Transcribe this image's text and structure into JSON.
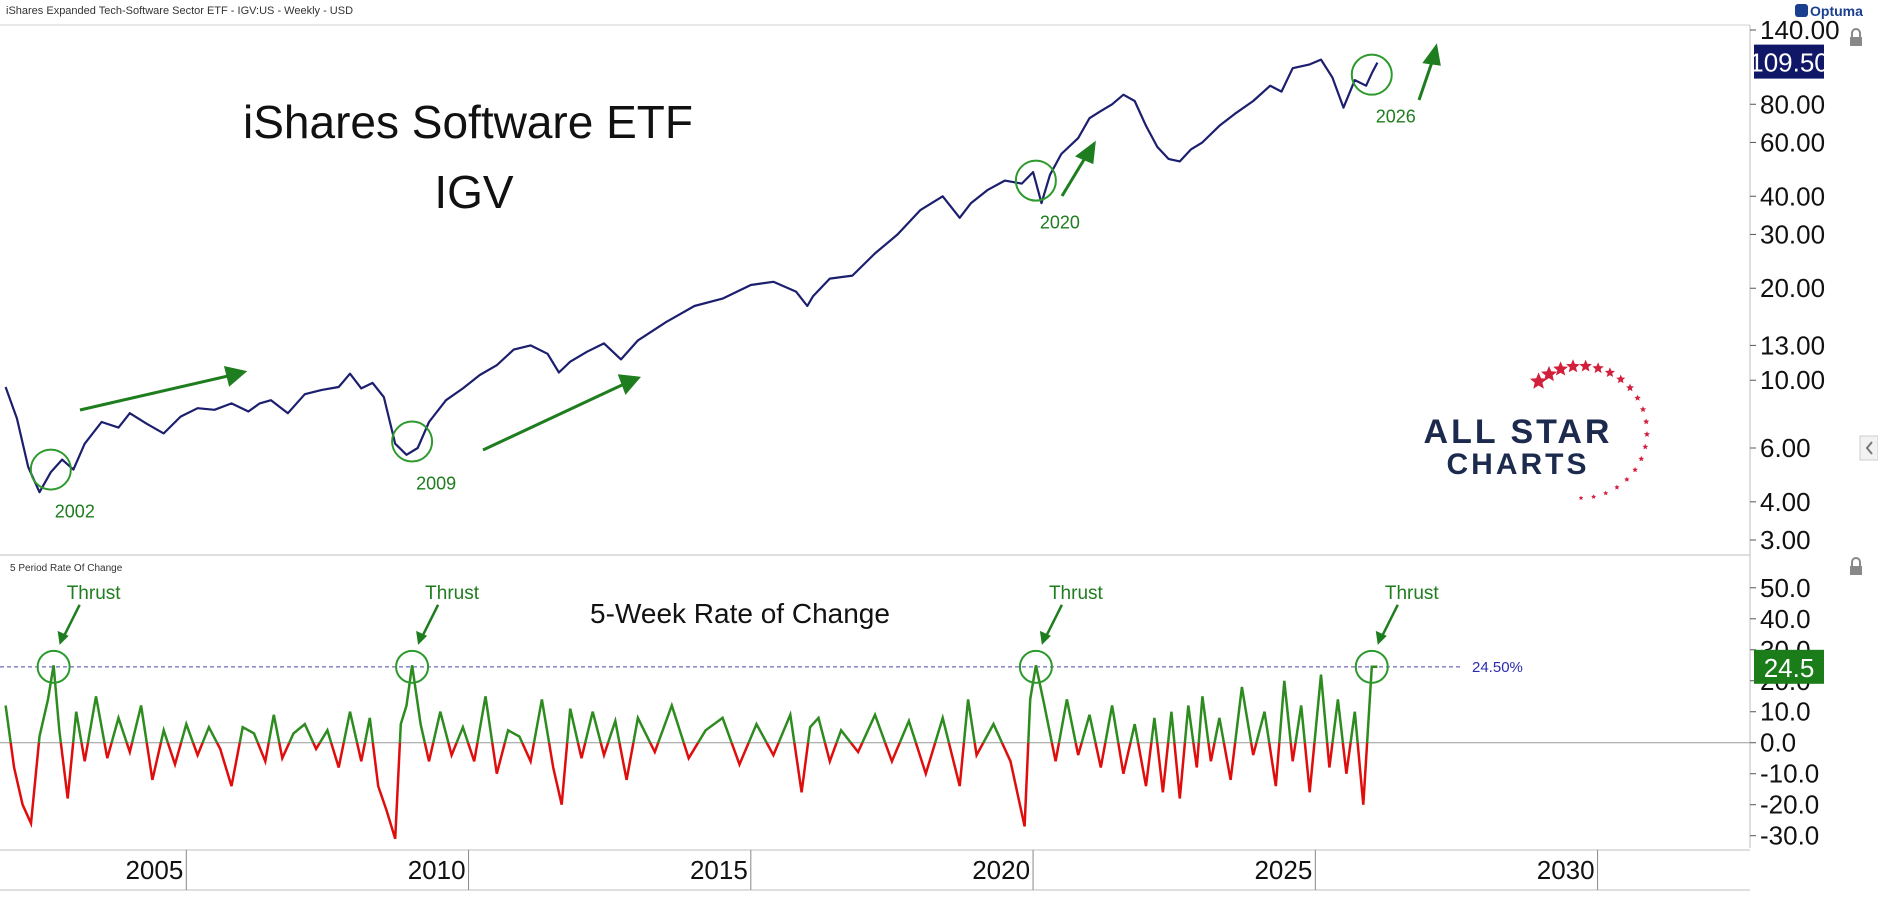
{
  "header": {
    "instrument_line": "iShares Expanded Tech-Software Sector ETF - IGV:US - Weekly - USD",
    "brand": "Optuma"
  },
  "chart_data": [
    {
      "type": "line",
      "title": "iShares Software ETF",
      "subtitle": "IGV",
      "yscale": "log",
      "ylim": [
        3,
        140
      ],
      "yticks": [
        "140.00",
        "80.00",
        "60.00",
        "40.00",
        "30.00",
        "20.00",
        "13.00",
        "10.00",
        "6.00",
        "4.00",
        "3.00"
      ],
      "ytick_values": [
        140,
        80,
        60,
        40,
        30,
        20,
        13,
        10,
        6,
        4,
        3
      ],
      "xlim": [
        2001.7,
        2032.7
      ],
      "xticks": [
        "2005",
        "2010",
        "2015",
        "2020",
        "2025",
        "2030"
      ],
      "xtick_values": [
        2005,
        2010,
        2015,
        2020,
        2025,
        2030
      ],
      "grid": false,
      "last_value_label": "109.50",
      "last_value": 109.5,
      "series": [
        {
          "color": "#1b1f6e",
          "x": [
            2001.8,
            2002.0,
            2002.2,
            2002.4,
            2002.6,
            2002.8,
            2003.0,
            2003.2,
            2003.5,
            2003.8,
            2004.0,
            2004.3,
            2004.6,
            2004.9,
            2005.2,
            2005.5,
            2005.8,
            2006.1,
            2006.3,
            2006.5,
            2006.8,
            2007.1,
            2007.4,
            2007.7,
            2007.9,
            2008.1,
            2008.3,
            2008.5,
            2008.7,
            2008.9,
            2009.1,
            2009.3,
            2009.6,
            2009.9,
            2010.2,
            2010.5,
            2010.8,
            2011.1,
            2011.4,
            2011.6,
            2011.8,
            2012.1,
            2012.4,
            2012.7,
            2013.0,
            2013.5,
            2014.0,
            2014.5,
            2015.0,
            2015.4,
            2015.8,
            2016.0,
            2016.1,
            2016.4,
            2016.8,
            2017.2,
            2017.6,
            2018.0,
            2018.4,
            2018.7,
            2018.9,
            2019.2,
            2019.5,
            2019.8,
            2020.0,
            2020.15,
            2020.3,
            2020.5,
            2020.8,
            2021.0,
            2021.2,
            2021.4,
            2021.6,
            2021.8,
            2022.0,
            2022.2,
            2022.4,
            2022.6,
            2022.8,
            2023.0,
            2023.3,
            2023.6,
            2023.9,
            2024.2,
            2024.4,
            2024.6,
            2024.9,
            2025.1,
            2025.3,
            2025.5,
            2025.7,
            2025.9,
            2026.0,
            2026.1
          ],
          "y": [
            9.5,
            7.5,
            5.2,
            4.3,
            5.0,
            5.5,
            5.1,
            6.2,
            7.3,
            7.0,
            7.8,
            7.2,
            6.7,
            7.6,
            8.1,
            8.0,
            8.4,
            7.9,
            8.4,
            8.6,
            7.8,
            9.0,
            9.3,
            9.5,
            10.5,
            9.4,
            9.8,
            8.8,
            6.2,
            5.7,
            6.0,
            7.3,
            8.6,
            9.4,
            10.4,
            11.2,
            12.6,
            13.0,
            12.2,
            10.6,
            11.5,
            12.4,
            13.2,
            11.7,
            13.5,
            15.5,
            17.5,
            18.5,
            20.5,
            21.0,
            19.5,
            17.5,
            18.8,
            21.5,
            22.0,
            26.0,
            30.0,
            36.0,
            40.0,
            34.0,
            38.0,
            42.0,
            45.0,
            44.0,
            48.0,
            38.0,
            47.0,
            55.0,
            62.0,
            72.0,
            76.0,
            80.0,
            86.0,
            82.0,
            68.0,
            58.0,
            53.0,
            52.0,
            57.0,
            60.0,
            68.0,
            75.0,
            82.0,
            92.0,
            88.0,
            105.0,
            108.0,
            112.0,
            98.0,
            78.0,
            96.0,
            92.0,
            101.0,
            109.5
          ]
        }
      ],
      "annotations": [
        {
          "label": "2002",
          "x": 2002.6,
          "y": 5.1
        },
        {
          "label": "2009",
          "x": 2009.0,
          "y": 6.3
        },
        {
          "label": "2020",
          "x": 2020.05,
          "y": 45.0
        },
        {
          "label": "2026",
          "x": 2026.0,
          "y": 100.0
        }
      ]
    },
    {
      "type": "line",
      "title": "5-Week Rate of Change",
      "panel_label": "5 Period Rate Of Change",
      "ylim": [
        -33,
        58
      ],
      "yticks": [
        "50.0",
        "40.0",
        "30.0",
        "20.0",
        "10.0",
        "0.0",
        "-10.0",
        "-20.0",
        "-30.0"
      ],
      "ytick_values": [
        50,
        40,
        30,
        20,
        10,
        0,
        -10,
        -20,
        -30
      ],
      "reference_line": {
        "value": 24.5,
        "label": "24.50%"
      },
      "last_value_label": "24.5",
      "last_value": 24.5,
      "positive_color": "#2e8b1f",
      "negative_color": "#e00d0d",
      "thrust_label": "Thrust",
      "thrusts": [
        2002.65,
        2009.0,
        2020.05,
        2026.0
      ],
      "series": [
        {
          "x": [
            2001.8,
            2001.95,
            2002.1,
            2002.25,
            2002.4,
            2002.55,
            2002.65,
            2002.75,
            2002.9,
            2003.05,
            2003.2,
            2003.4,
            2003.6,
            2003.8,
            2004.0,
            2004.2,
            2004.4,
            2004.6,
            2004.8,
            2005.0,
            2005.2,
            2005.4,
            2005.6,
            2005.8,
            2006.0,
            2006.2,
            2006.4,
            2006.55,
            2006.7,
            2006.9,
            2007.1,
            2007.3,
            2007.5,
            2007.7,
            2007.9,
            2008.1,
            2008.25,
            2008.4,
            2008.55,
            2008.7,
            2008.8,
            2008.9,
            2009.0,
            2009.15,
            2009.3,
            2009.5,
            2009.7,
            2009.9,
            2010.1,
            2010.3,
            2010.5,
            2010.7,
            2010.9,
            2011.1,
            2011.3,
            2011.5,
            2011.65,
            2011.8,
            2012.0,
            2012.2,
            2012.4,
            2012.6,
            2012.8,
            2013.0,
            2013.3,
            2013.6,
            2013.9,
            2014.2,
            2014.5,
            2014.8,
            2015.1,
            2015.4,
            2015.7,
            2015.9,
            2016.05,
            2016.2,
            2016.4,
            2016.6,
            2016.9,
            2017.2,
            2017.5,
            2017.8,
            2018.1,
            2018.4,
            2018.7,
            2018.85,
            2019.0,
            2019.3,
            2019.6,
            2019.85,
            2019.95,
            2020.05,
            2020.2,
            2020.4,
            2020.6,
            2020.8,
            2021.0,
            2021.2,
            2021.4,
            2021.6,
            2021.8,
            2022.0,
            2022.15,
            2022.3,
            2022.45,
            2022.6,
            2022.75,
            2022.9,
            2023.0,
            2023.15,
            2023.3,
            2023.5,
            2023.7,
            2023.9,
            2024.1,
            2024.3,
            2024.45,
            2024.6,
            2024.75,
            2024.9,
            2025.1,
            2025.25,
            2025.4,
            2025.55,
            2025.7,
            2025.85,
            2026.0,
            2026.1
          ],
          "y": [
            12,
            -8,
            -20,
            -26,
            2,
            14,
            25,
            4,
            -18,
            10,
            -6,
            15,
            -5,
            8,
            -3,
            12,
            -12,
            4,
            -7,
            6,
            -4,
            5,
            -2,
            -14,
            5,
            3,
            -6,
            9,
            -5,
            3,
            6,
            -2,
            4,
            -8,
            10,
            -6,
            8,
            -14,
            -22,
            -31,
            6,
            12,
            25,
            6,
            -6,
            10,
            -4,
            5,
            -6,
            15,
            -10,
            4,
            2,
            -6,
            14,
            -8,
            -20,
            11,
            -5,
            10,
            -4,
            7,
            -12,
            8,
            -3,
            12,
            -5,
            4,
            8,
            -7,
            6,
            -4,
            9,
            -16,
            5,
            8,
            -6,
            4,
            -3,
            9,
            -6,
            7,
            -10,
            8,
            -14,
            14,
            -4,
            6,
            -6,
            -27,
            14,
            25,
            12,
            -6,
            14,
            -4,
            9,
            -8,
            12,
            -10,
            6,
            -14,
            8,
            -16,
            10,
            -18,
            12,
            -8,
            15,
            -6,
            8,
            -12,
            18,
            -4,
            10,
            -14,
            20,
            -6,
            12,
            -16,
            22,
            -8,
            14,
            -10,
            10,
            -20,
            24.5,
            24.5
          ]
        }
      ]
    }
  ],
  "logo": {
    "line1": "ALL STAR",
    "line2": "CHARTS"
  }
}
